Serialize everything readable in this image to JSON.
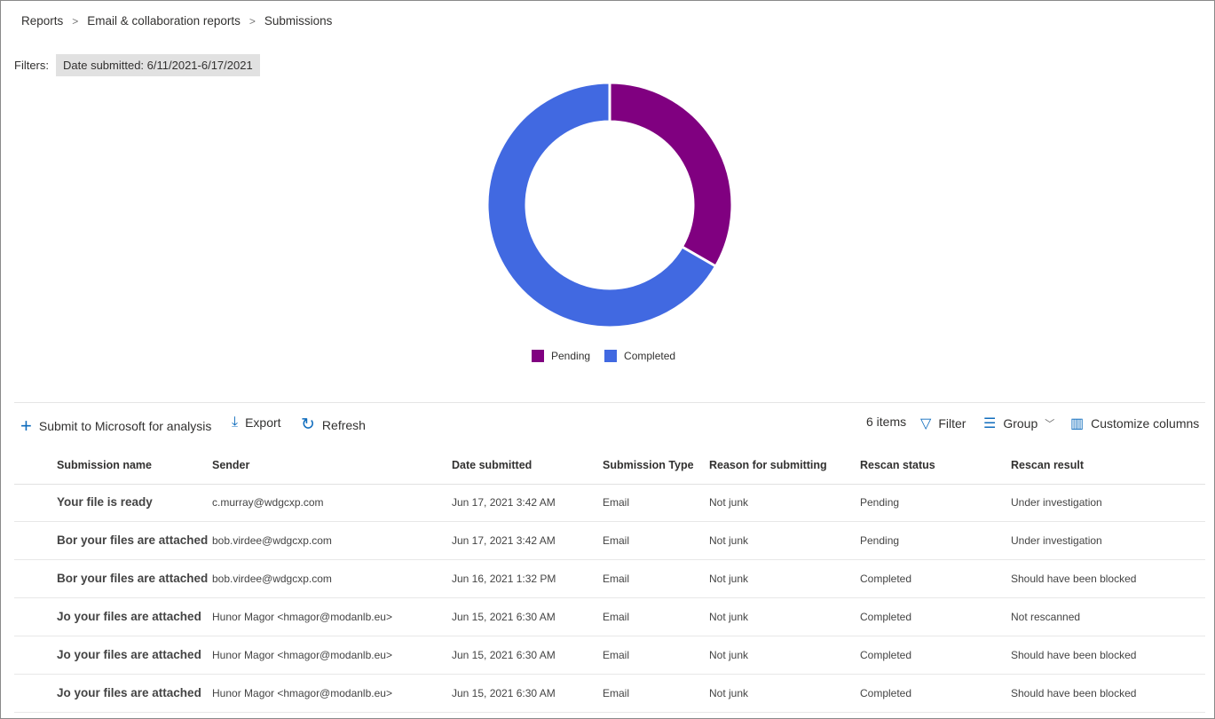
{
  "breadcrumb": [
    "Reports",
    "Email & collaboration reports",
    "Submissions"
  ],
  "filters": {
    "label": "Filters:",
    "chip": "Date submitted: 6/11/2021-6/17/2021"
  },
  "chart_data": {
    "type": "pie",
    "donut": true,
    "categories": [
      "Pending",
      "Completed"
    ],
    "values": [
      2,
      4
    ],
    "colors": [
      "#800080",
      "#4169e1"
    ],
    "legend": "bottom"
  },
  "toolbar": {
    "submit": "Submit to Microsoft for analysis",
    "export": "Export",
    "refresh": "Refresh",
    "count": "6 items",
    "filter": "Filter",
    "group": "Group",
    "customize": "Customize columns"
  },
  "table": {
    "headers": [
      "Submission name",
      "Sender",
      "Date submitted",
      "Submission Type",
      "Reason for submitting",
      "Rescan status",
      "Rescan result"
    ],
    "rows": [
      [
        "Your file is ready",
        "c.murray@wdgcxp.com",
        "Jun 17, 2021 3:42 AM",
        "Email",
        "Not junk",
        "Pending",
        "Under investigation"
      ],
      [
        "Bor your files are attached",
        "bob.virdee@wdgcxp.com",
        "Jun 17, 2021 3:42 AM",
        "Email",
        "Not junk",
        "Pending",
        "Under investigation"
      ],
      [
        "Bor your files are attached",
        "bob.virdee@wdgcxp.com",
        "Jun 16, 2021 1:32 PM",
        "Email",
        "Not junk",
        "Completed",
        "Should have been blocked"
      ],
      [
        "Jo your files are attached",
        "Hunor Magor <hmagor@modanlb.eu>",
        "Jun 15, 2021 6:30 AM",
        "Email",
        "Not junk",
        "Completed",
        "Not rescanned"
      ],
      [
        "Jo your files are attached",
        "Hunor Magor <hmagor@modanlb.eu>",
        "Jun 15, 2021 6:30 AM",
        "Email",
        "Not junk",
        "Completed",
        "Should have been blocked"
      ],
      [
        "Jo your files are attached",
        "Hunor Magor <hmagor@modanlb.eu>",
        "Jun 15, 2021 6:30 AM",
        "Email",
        "Not junk",
        "Completed",
        "Should have been blocked"
      ]
    ]
  }
}
